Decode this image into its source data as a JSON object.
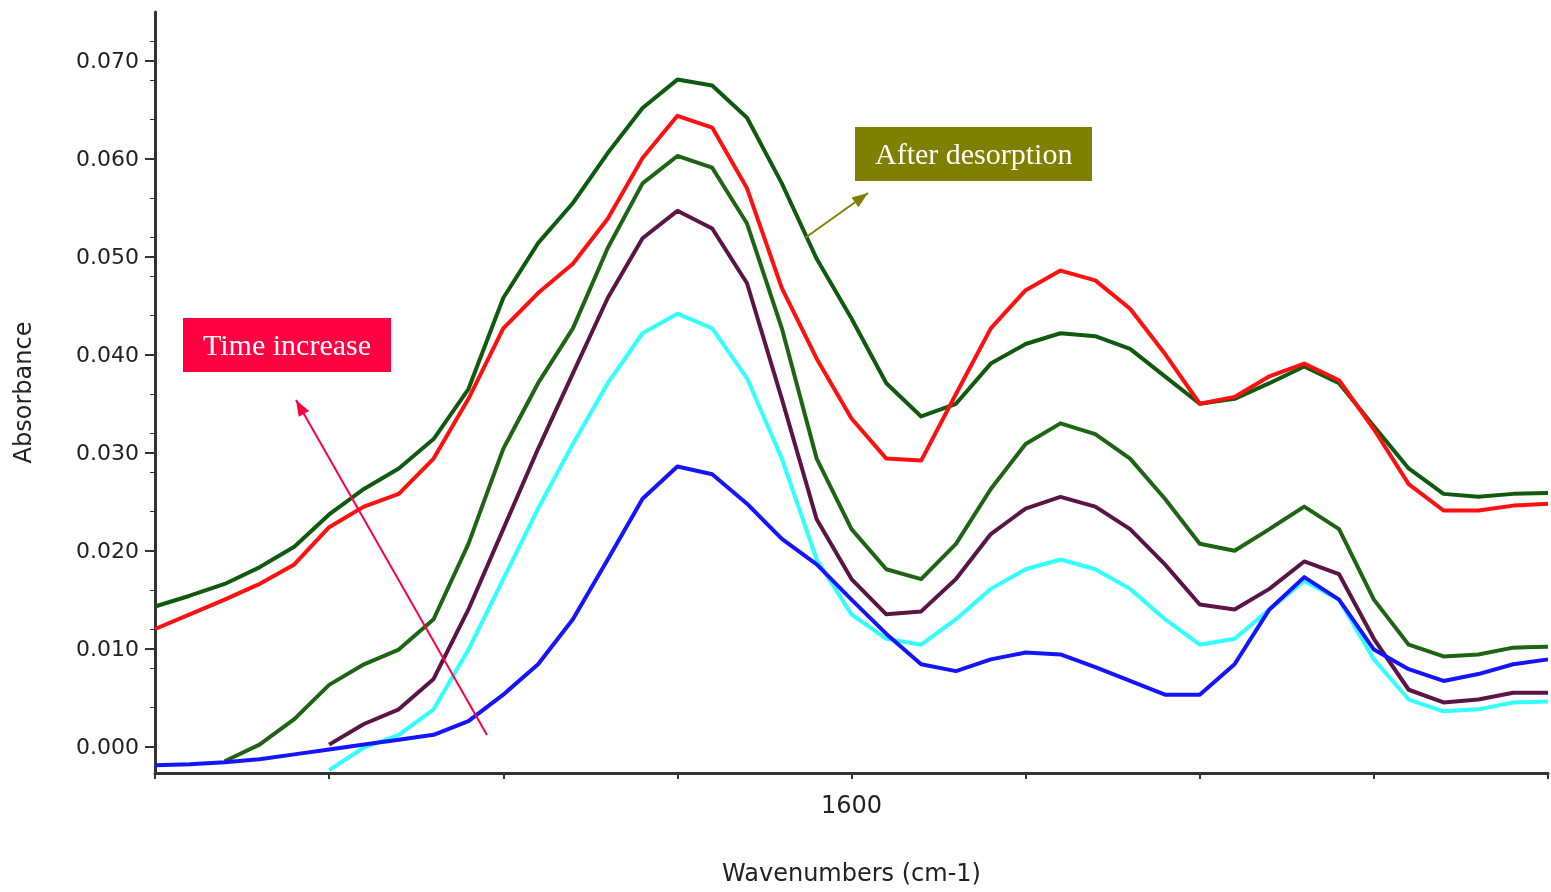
{
  "chart_data": {
    "type": "line",
    "xlabel": "Wavenumbers (cm-1)",
    "ylabel": "Absorbance",
    "categories": [
      null,
      null,
      null,
      null,
      null,
      null,
      null,
      null,
      null,
      null,
      null,
      null,
      null,
      null,
      null,
      null,
      null,
      null,
      null,
      null,
      null,
      null,
      null,
      null,
      null,
      null,
      null,
      null,
      null,
      null,
      null,
      null,
      null,
      null,
      null,
      null,
      null,
      null,
      null,
      null,
      null
    ],
    "ylim": [
      -0.0027,
      0.075
    ],
    "yticks": [
      {
        "value": 0,
        "label": "0.000"
      },
      {
        "value": 0.01,
        "label": "0.010"
      },
      {
        "value": 0.02,
        "label": "0.020"
      },
      {
        "value": 0.03,
        "label": "0.030"
      },
      {
        "value": 0.04,
        "label": "0.040"
      },
      {
        "value": 0.05,
        "label": "0.050"
      },
      {
        "value": 0.06,
        "label": "0.060"
      },
      {
        "value": 0.07,
        "label": "0.070"
      }
    ],
    "grid": false,
    "marker": "none",
    "line_style": "solid",
    "annotations": [
      "After desorption",
      "Time increase",
      "1600"
    ],
    "series": [
      {
        "color": "#0f5a0f",
        "values": [
          0.0143,
          0.0154,
          0.0166,
          0.0183,
          0.0204,
          0.0237,
          0.0263,
          0.0284,
          0.0314,
          0.0365,
          0.0458,
          0.0514,
          0.0555,
          0.0606,
          0.0652,
          0.0681,
          0.0675,
          0.0642,
          0.0575,
          0.0498,
          0.0437,
          0.0371,
          0.0337,
          0.035,
          0.0391,
          0.0411,
          0.0422,
          0.0419,
          0.0406,
          0.0378,
          0.035,
          0.0355,
          0.0371,
          0.0388,
          0.0371,
          0.0327,
          0.0284,
          0.0258,
          0.0255,
          0.0258,
          0.0259
        ]
      },
      {
        "color": "#ff1010",
        "values": [
          0.012,
          0.0135,
          0.015,
          0.0166,
          0.0186,
          0.0224,
          0.0245,
          0.0258,
          0.0294,
          0.0355,
          0.0427,
          0.0463,
          0.0493,
          0.0539,
          0.0601,
          0.0644,
          0.0632,
          0.057,
          0.0468,
          0.0396,
          0.0335,
          0.0294,
          0.0292,
          0.036,
          0.0427,
          0.0466,
          0.0486,
          0.0476,
          0.0447,
          0.0401,
          0.035,
          0.0357,
          0.0378,
          0.0391,
          0.0374,
          0.0324,
          0.0268,
          0.0241,
          0.0241,
          0.0246,
          0.0248
        ]
      },
      {
        "color": "#1e6414",
        "values": [
          null,
          null,
          -0.0015,
          0.0002,
          0.0028,
          0.0063,
          0.0084,
          0.0099,
          0.013,
          0.0207,
          0.0304,
          0.0371,
          0.0427,
          0.0509,
          0.0575,
          0.0603,
          0.0591,
          0.0534,
          0.0427,
          0.0294,
          0.0222,
          0.0181,
          0.0171,
          0.0207,
          0.0263,
          0.0309,
          0.033,
          0.0319,
          0.0294,
          0.0253,
          0.0207,
          0.02,
          0.0222,
          0.0245,
          0.0222,
          0.015,
          0.0104,
          0.0092,
          0.0094,
          0.0101,
          0.0102
        ]
      },
      {
        "color": "#5a1446",
        "values": [
          null,
          null,
          null,
          null,
          null,
          0.0002,
          0.0023,
          0.0038,
          0.0069,
          0.014,
          0.0222,
          0.0304,
          0.0381,
          0.0458,
          0.0519,
          0.0547,
          0.0529,
          0.0473,
          0.0355,
          0.0232,
          0.0171,
          0.0135,
          0.0138,
          0.0171,
          0.0217,
          0.0243,
          0.0255,
          0.0245,
          0.0222,
          0.0186,
          0.0145,
          0.014,
          0.0161,
          0.0189,
          0.0176,
          0.011,
          0.0058,
          0.0045,
          0.0048,
          0.0055,
          0.0055
        ]
      },
      {
        "color": "#33ffff",
        "values": [
          null,
          null,
          null,
          null,
          null,
          -0.0024,
          -0.0001,
          0.0012,
          0.0038,
          0.0099,
          0.0171,
          0.0243,
          0.0309,
          0.0371,
          0.0422,
          0.0442,
          0.0427,
          0.0376,
          0.0294,
          0.0191,
          0.0135,
          0.011,
          0.0104,
          0.013,
          0.0161,
          0.0181,
          0.0191,
          0.0181,
          0.0161,
          0.013,
          0.0104,
          0.011,
          0.014,
          0.0169,
          0.015,
          0.0089,
          0.0048,
          0.0036,
          0.0038,
          0.0045,
          0.0046
        ]
      },
      {
        "color": "#1414ff",
        "values": [
          -0.0019,
          -0.0018,
          -0.0016,
          -0.0013,
          -0.0008,
          -0.0003,
          0.0002,
          0.0007,
          0.0012,
          0.0026,
          0.0053,
          0.0084,
          0.013,
          0.0191,
          0.0253,
          0.0286,
          0.0278,
          0.0248,
          0.0212,
          0.0186,
          0.015,
          0.0115,
          0.0084,
          0.0077,
          0.0089,
          0.0096,
          0.0094,
          0.0081,
          0.0067,
          0.0053,
          0.0053,
          0.0084,
          0.014,
          0.0173,
          0.015,
          0.0099,
          0.0079,
          0.0067,
          0.0074,
          0.0084,
          0.0089
        ]
      }
    ]
  }
}
